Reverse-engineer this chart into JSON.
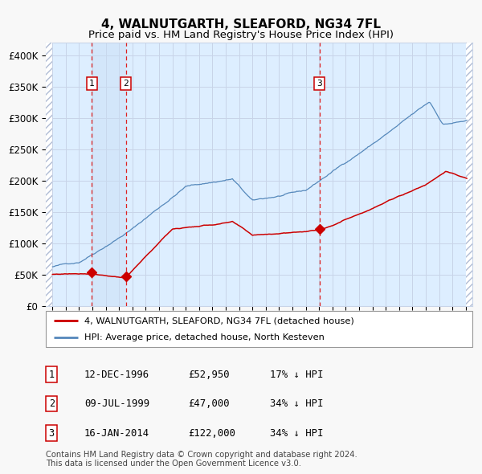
{
  "title": "4, WALNUTGARTH, SLEAFORD, NG34 7FL",
  "subtitle": "Price paid vs. HM Land Registry's House Price Index (HPI)",
  "title_fontsize": 11,
  "subtitle_fontsize": 9.5,
  "red_line_label": "4, WALNUTGARTH, SLEAFORD, NG34 7FL (detached house)",
  "blue_line_label": "HPI: Average price, detached house, North Kesteven",
  "footer": "Contains HM Land Registry data © Crown copyright and database right 2024.\nThis data is licensed under the Open Government Licence v3.0.",
  "transactions": [
    {
      "label": "1",
      "date": "12-DEC-1996",
      "price": 52950,
      "hpi_diff": "17% ↓ HPI",
      "x_year": 1996.95
    },
    {
      "label": "2",
      "date": "09-JUL-1999",
      "price": 47000,
      "hpi_diff": "34% ↓ HPI",
      "x_year": 1999.52
    },
    {
      "label": "3",
      "date": "16-JAN-2014",
      "price": 122000,
      "hpi_diff": "34% ↓ HPI",
      "x_year": 2014.04
    }
  ],
  "shaded_region": [
    1996.95,
    1999.52
  ],
  "ylim": [
    0,
    420000
  ],
  "yticks": [
    0,
    50000,
    100000,
    150000,
    200000,
    250000,
    300000,
    350000,
    400000
  ],
  "ytick_labels": [
    "£0",
    "£50K",
    "£100K",
    "£150K",
    "£200K",
    "£250K",
    "£300K",
    "£350K",
    "£400K"
  ],
  "xlim_start": 1993.5,
  "xlim_end": 2025.5,
  "hatch_color": "#b0bcd4",
  "grid_color": "#c8d4e8",
  "bg_color": "#ddeeff",
  "plot_bg": "#f8f8f8",
  "red_color": "#cc0000",
  "blue_color": "#5588bb",
  "marker_color": "#cc0000",
  "dashed_line_color": "#dd2222",
  "box_border_color": "#cc0000",
  "label_bg": "#ffffff",
  "legend_border": "#999999"
}
